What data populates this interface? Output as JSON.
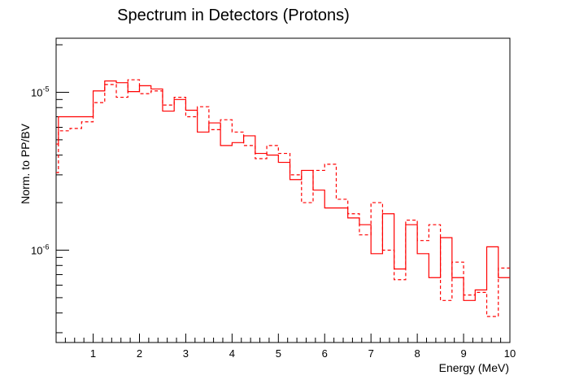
{
  "chart_data": {
    "type": "line",
    "title": "Spectrum in Detectors (Protons)",
    "xlabel": "Energy (MeV)",
    "ylabel": "Norm. to PP/BV",
    "xlim": [
      0.2,
      10
    ],
    "ylim": [
      2.6e-07,
      2.2e-05
    ],
    "yscale": "log",
    "x_tick_labels": [
      "1",
      "2",
      "3",
      "4",
      "5",
      "6",
      "7",
      "8",
      "9",
      "10"
    ],
    "y_tick_labels": [
      {
        "base": "10",
        "exp": "-6",
        "value": 1e-06
      },
      {
        "base": "10",
        "exp": "-5",
        "value": 1e-05
      }
    ],
    "grid": false,
    "legend": "none",
    "bin_edges": [
      0.2,
      0.25,
      0.5,
      0.75,
      1,
      1.25,
      1.5,
      1.75,
      2,
      2.25,
      2.5,
      2.75,
      3,
      3.25,
      3.5,
      3.75,
      4,
      4.25,
      4.5,
      4.75,
      5,
      5.25,
      5.5,
      5.75,
      6,
      6.25,
      6.5,
      6.75,
      7,
      7.25,
      7.5,
      7.75,
      8,
      8.25,
      8.5,
      8.75,
      9,
      9.25,
      9.5,
      9.75,
      10
    ],
    "series": [
      {
        "style": "solid",
        "color": "#ff0000",
        "values": [
          4.7e-06,
          7e-06,
          7e-06,
          7e-06,
          1.02e-05,
          1.18e-05,
          1.15e-05,
          1.01e-05,
          1.1e-05,
          1.05e-05,
          7.6e-06,
          9e-06,
          7.7e-06,
          5.6e-06,
          6.4e-06,
          4.6e-06,
          4.8e-06,
          5.3e-06,
          4.1e-06,
          4e-06,
          3.6e-06,
          2.8e-06,
          3.2e-06,
          2.4e-06,
          1.85e-06,
          1.85e-06,
          1.6e-06,
          1.45e-06,
          9.5e-07,
          1.7e-06,
          7.6e-07,
          1.45e-06,
          9.5e-07,
          6.7e-07,
          1.2e-06,
          6.7e-07,
          4.8e-07,
          5.6e-07,
          1.05e-06,
          6.7e-07
        ]
      },
      {
        "style": "dashed",
        "color": "#ff0000",
        "values": [
          3.1e-06,
          5.7e-06,
          5.9e-06,
          6.5e-06,
          8.6e-06,
          1.12e-05,
          9.3e-06,
          1.2e-05,
          9.8e-06,
          1.02e-05,
          8.3e-06,
          9.3e-06,
          7e-06,
          8.1e-06,
          5.8e-06,
          6.7e-06,
          5.6e-06,
          4.6e-06,
          3.8e-06,
          4.6e-06,
          4.1e-06,
          3e-06,
          2e-06,
          3.2e-06,
          3.5e-06,
          2.1e-06,
          1.7e-06,
          1.25e-06,
          2e-06,
          1e-06,
          6.5e-07,
          1.55e-06,
          1.15e-06,
          1.45e-06,
          4.8e-07,
          8.4e-07,
          5.2e-07,
          5.4e-07,
          3.8e-07,
          7.7e-07
        ]
      }
    ]
  }
}
